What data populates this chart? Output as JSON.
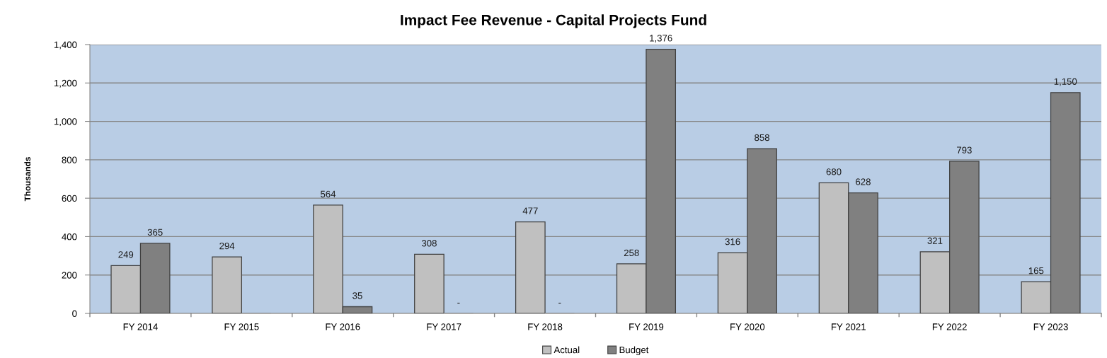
{
  "chart_data": {
    "type": "bar",
    "title": "Impact Fee Revenue - Capital Projects Fund",
    "ylabel": "Thousands",
    "categories": [
      "FY 2014",
      "FY 2015",
      "FY 2016",
      "FY 2017",
      "FY 2018",
      "FY 2019",
      "FY 2020",
      "FY 2021",
      "FY 2022",
      "FY 2023"
    ],
    "series": [
      {
        "name": "Actual",
        "color": "#c0c0c0",
        "values": [
          249,
          294,
          564,
          308,
          477,
          258,
          316,
          680,
          321,
          165
        ],
        "value_labels": [
          "249",
          "294",
          "564",
          "308",
          "477",
          "258",
          "316",
          "680",
          "321",
          "165"
        ]
      },
      {
        "name": "Budget",
        "color": "#808080",
        "values": [
          365,
          0,
          35,
          0,
          0,
          1376,
          858,
          628,
          793,
          1150
        ],
        "value_labels": [
          "365",
          null,
          "35",
          "-",
          "-",
          "1,376",
          "858",
          "628",
          "793",
          "1,150"
        ]
      }
    ],
    "ylim": [
      0,
      1400
    ],
    "yticks": [
      0,
      200,
      400,
      600,
      800,
      {
        "value": 1000,
        "label": "1,000"
      },
      {
        "value": 1200,
        "label": "1,200"
      },
      {
        "value": 1400,
        "label": "1,400"
      }
    ],
    "grid": "y",
    "legend": "bottom"
  }
}
